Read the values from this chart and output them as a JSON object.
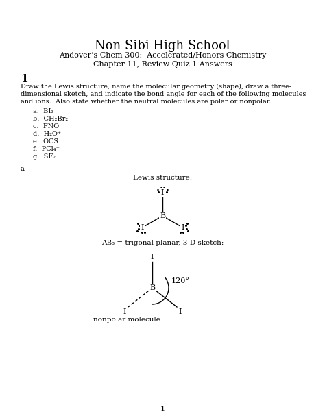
{
  "title": "Non Sibi High School",
  "subtitle1": "Andover’s Chem 300:  Accelerated/Honors Chemistry",
  "subtitle2": "Chapter 11, Review Quiz 1 Answers",
  "section_num": "1",
  "instructions": "Draw the Lewis structure, name the molecular geometry (shape), draw a three-dimensional sketch, and indicate the bond angle for each of the following molecules and ions.  Also state whether the neutral molecules are polar or nonpolar.",
  "list_items": [
    "a.  BI₃",
    "b.  CH₂Br₂",
    "c.  FNO",
    "d.  H₂O⁺",
    "e.  OCS",
    "f.  PCl₄⁺",
    "g.  SF₂"
  ],
  "answer_label": "a.",
  "lewis_label": "Lewis structure:",
  "ab3_label": "AB₃ = trigonal planar, 3-D sketch:",
  "angle_label": "120°",
  "nonpolar_label": "nonpolar molecule",
  "page_num": "1",
  "bg_color": "#ffffff",
  "text_color": "#000000",
  "line_color": "#000000"
}
